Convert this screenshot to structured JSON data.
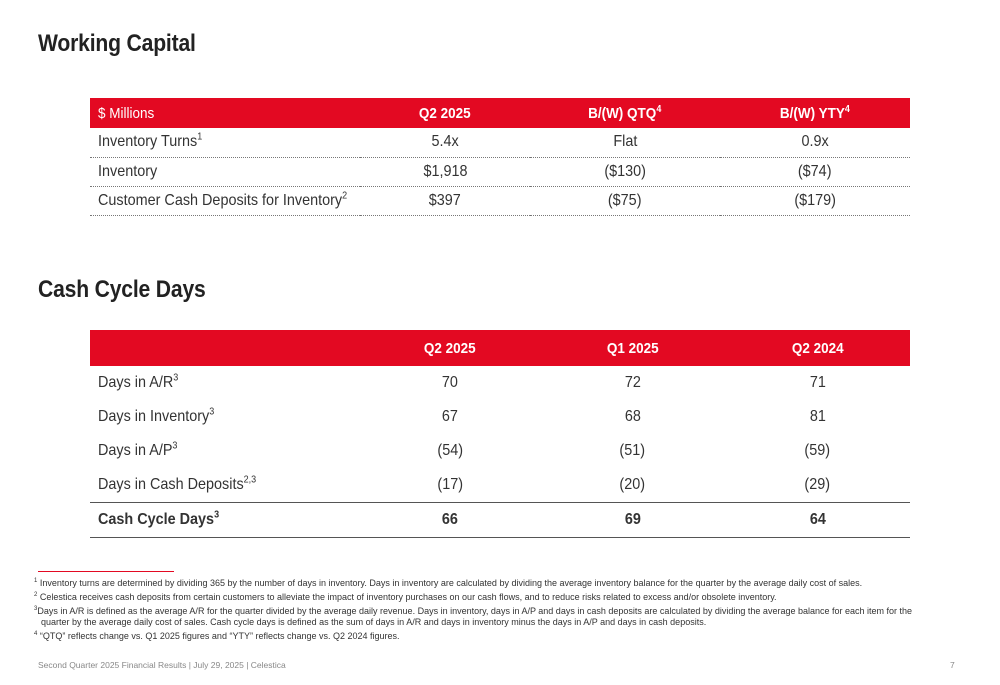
{
  "working_capital": {
    "title": "Working Capital",
    "headers": [
      "$ Millions",
      "Q2 2025",
      "B/(W) QTQ",
      "B/(W) YTY"
    ],
    "header_sups": [
      "",
      "",
      "4",
      "4"
    ],
    "rows": [
      {
        "label": "Inventory Turns",
        "sup": "1",
        "values": [
          "5.4x",
          "Flat",
          "0.9x"
        ]
      },
      {
        "label": "Inventory",
        "sup": "",
        "values": [
          "$1,918",
          "($130)",
          "($74)"
        ]
      },
      {
        "label": "Customer Cash Deposits for Inventory",
        "sup": "2",
        "values": [
          "$397",
          "($75)",
          "($179)"
        ]
      }
    ]
  },
  "cash_cycle": {
    "title": "Cash Cycle Days",
    "headers": [
      "",
      "Q2 2025",
      "Q1 2025",
      "Q2 2024"
    ],
    "rows": [
      {
        "label": "Days in A/R",
        "sup": "3",
        "values": [
          "70",
          "72",
          "71"
        ]
      },
      {
        "label": "Days in Inventory",
        "sup": "3",
        "values": [
          "67",
          "68",
          "81"
        ]
      },
      {
        "label": "Days in A/P",
        "sup": "3",
        "values": [
          "(54)",
          "(51)",
          "(59)"
        ]
      },
      {
        "label": "Days in Cash Deposits",
        "sup": "2,3",
        "values": [
          "(17)",
          "(20)",
          "(29)"
        ]
      }
    ],
    "total": {
      "label": "Cash Cycle Days",
      "sup": "3",
      "values": [
        "66",
        "69",
        "64"
      ]
    }
  },
  "footnotes": [
    {
      "num": "1",
      "text": "Inventory turns are determined by dividing 365 by the number of days in inventory. Days in inventory are calculated by dividing the average inventory balance for the quarter by the average daily cost of sales."
    },
    {
      "num": "2",
      "text": "Celestica receives cash deposits from certain customers to alleviate the impact of inventory purchases on our cash flows, and to reduce risks related to excess and/or obsolete inventory."
    },
    {
      "num": "3",
      "text": "Days in A/R is defined as the average A/R for the quarter divided by the average daily revenue. Days in inventory, days in A/P and days in cash deposits are calculated by dividing the average balance for each item for the quarter by the average daily cost of sales. Cash cycle days is defined as the sum of days in A/R and days in inventory minus the days in A/P and days in cash deposits."
    },
    {
      "num": "4",
      "text": "“QTQ” reflects change vs. Q1 2025 figures and “YTY” reflects change vs. Q2 2024 figures."
    }
  ],
  "footer": {
    "text": "Second Quarter 2025 Financial Results | July 29, 2025 | Celestica",
    "page": "7"
  },
  "colors": {
    "accent": "#e30922"
  }
}
